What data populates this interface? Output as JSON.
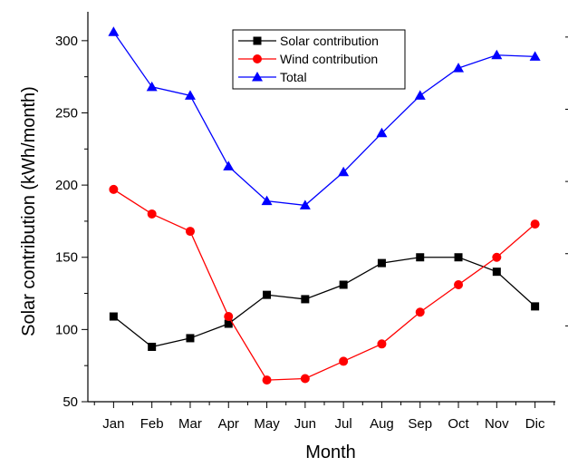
{
  "chart_data": {
    "type": "line",
    "categories": [
      "Jan",
      "Feb",
      "Mar",
      "Apr",
      "May",
      "Jun",
      "Jul",
      "Aug",
      "Sep",
      "Oct",
      "Nov",
      "Dic"
    ],
    "series": [
      {
        "name": "Solar contribution",
        "color": "#000000",
        "marker": "square",
        "values": [
          109,
          88,
          94,
          104,
          124,
          121,
          131,
          146,
          150,
          150,
          140,
          116
        ]
      },
      {
        "name": "Wind contribution",
        "color": "#ff0000",
        "marker": "circle",
        "values": [
          197,
          180,
          168,
          109,
          65,
          66,
          78,
          90,
          112,
          131,
          150,
          173
        ]
      },
      {
        "name": "Total",
        "color": "#0000ff",
        "marker": "triangle",
        "values": [
          306,
          268,
          262,
          213,
          189,
          186,
          209,
          236,
          262,
          281,
          290,
          289
        ]
      }
    ],
    "xlabel": "Month",
    "ylabel": "Solar contribution (kWh/month)",
    "ylim": [
      50,
      320
    ],
    "yticks": [
      50,
      100,
      150,
      200,
      250,
      300
    ],
    "grid": false,
    "legend_position": "top-center"
  }
}
